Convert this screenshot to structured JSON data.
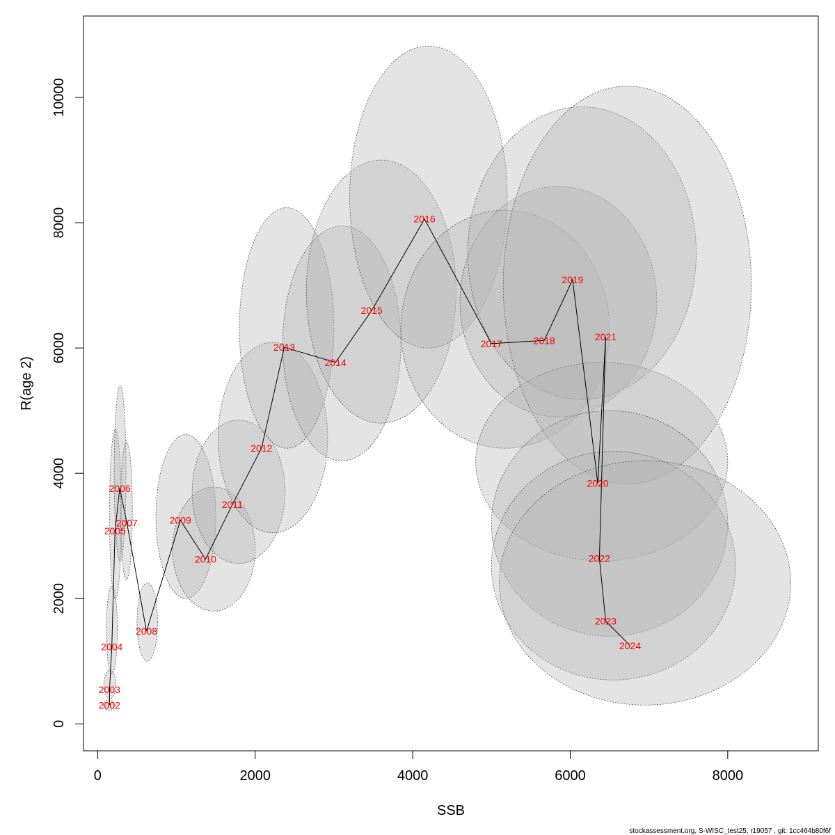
{
  "chart_data": {
    "type": "scatter",
    "title": "",
    "xlabel": "SSB",
    "ylabel": "R(age 2)",
    "xlim": [
      -180,
      9150
    ],
    "ylim": [
      -430,
      11300
    ],
    "xticks": [
      "0",
      "2000",
      "4000",
      "6000",
      "8000"
    ],
    "yticks": [
      "0",
      "2000",
      "4000",
      "6000",
      "8000",
      "10000"
    ],
    "grid": false,
    "legend": "none",
    "point_color": "#ff0000",
    "path_color": "#000000",
    "ellipse_fill": "#b3b3b3",
    "ellipse_stroke": "#555555",
    "points": [
      {
        "year": "2002",
        "x": 150,
        "y": 300,
        "ellipse": {
          "xmin": 70,
          "xmax": 220,
          "ymin": 220,
          "ymax": 380
        }
      },
      {
        "year": "2003",
        "x": 150,
        "y": 550,
        "ellipse": {
          "xmin": 80,
          "xmax": 230,
          "ymin": 400,
          "ymax": 860
        }
      },
      {
        "year": "2004",
        "x": 180,
        "y": 1230,
        "ellipse": {
          "xmin": 110,
          "xmax": 250,
          "ymin": 800,
          "ymax": 2200
        }
      },
      {
        "year": "2005",
        "x": 220,
        "y": 3080,
        "ellipse": {
          "xmin": 150,
          "xmax": 300,
          "ymin": 2000,
          "ymax": 4700
        }
      },
      {
        "year": "2006",
        "x": 280,
        "y": 3760,
        "ellipse": {
          "xmin": 210,
          "xmax": 360,
          "ymin": 2600,
          "ymax": 5400
        }
      },
      {
        "year": "2007",
        "x": 370,
        "y": 3210,
        "ellipse": {
          "xmin": 290,
          "xmax": 440,
          "ymin": 2300,
          "ymax": 4500
        }
      },
      {
        "year": "2008",
        "x": 620,
        "y": 1480,
        "ellipse": {
          "xmin": 500,
          "xmax": 760,
          "ymin": 1000,
          "ymax": 2250
        }
      },
      {
        "year": "2009",
        "x": 1050,
        "y": 3250,
        "ellipse": {
          "xmin": 740,
          "xmax": 1500,
          "ymin": 2000,
          "ymax": 4620
        }
      },
      {
        "year": "2010",
        "x": 1370,
        "y": 2630,
        "ellipse": {
          "xmin": 950,
          "xmax": 2000,
          "ymin": 1800,
          "ymax": 3780
        }
      },
      {
        "year": "2011",
        "x": 1710,
        "y": 3500,
        "ellipse": {
          "xmin": 1200,
          "xmax": 2380,
          "ymin": 2560,
          "ymax": 4850
        }
      },
      {
        "year": "2012",
        "x": 2080,
        "y": 4400,
        "ellipse": {
          "xmin": 1530,
          "xmax": 2920,
          "ymin": 3050,
          "ymax": 6090
        }
      },
      {
        "year": "2013",
        "x": 2370,
        "y": 6010,
        "ellipse": {
          "xmin": 1800,
          "xmax": 3000,
          "ymin": 4400,
          "ymax": 8240
        }
      },
      {
        "year": "2014",
        "x": 3020,
        "y": 5770,
        "ellipse": {
          "xmin": 2350,
          "xmax": 3850,
          "ymin": 4200,
          "ymax": 7950
        }
      },
      {
        "year": "2015",
        "x": 3480,
        "y": 6600,
        "ellipse": {
          "xmin": 2650,
          "xmax": 4550,
          "ymin": 4800,
          "ymax": 9000
        }
      },
      {
        "year": "2016",
        "x": 4150,
        "y": 8060,
        "ellipse": {
          "xmin": 3200,
          "xmax": 5200,
          "ymin": 6000,
          "ymax": 10820
        }
      },
      {
        "year": "2017",
        "x": 5000,
        "y": 6070,
        "ellipse": {
          "xmin": 3850,
          "xmax": 6500,
          "ymin": 4400,
          "ymax": 8200
        }
      },
      {
        "year": "2018",
        "x": 5670,
        "y": 6120,
        "ellipse": {
          "xmin": 4600,
          "xmax": 7100,
          "ymin": 4900,
          "ymax": 8580
        }
      },
      {
        "year": "2019",
        "x": 6030,
        "y": 7090,
        "ellipse": {
          "xmin": 4700,
          "xmax": 7600,
          "ymin": 5180,
          "ymax": 9850
        }
      },
      {
        "year": "2020",
        "x": 6350,
        "y": 3840,
        "ellipse": {
          "xmin": 4800,
          "xmax": 8000,
          "ymin": 2600,
          "ymax": 5770
        }
      },
      {
        "year": "2021",
        "x": 6450,
        "y": 6180,
        "ellipse": {
          "xmin": 5150,
          "xmax": 8300,
          "ymin": 3830,
          "ymax": 10180
        }
      },
      {
        "year": "2022",
        "x": 6370,
        "y": 2640,
        "ellipse": {
          "xmin": 5000,
          "xmax": 8000,
          "ymin": 1400,
          "ymax": 5000
        }
      },
      {
        "year": "2023",
        "x": 6450,
        "y": 1640,
        "ellipse": {
          "xmin": 5000,
          "xmax": 8100,
          "ymin": 700,
          "ymax": 4350
        }
      },
      {
        "year": "2024",
        "x": 6760,
        "y": 1250,
        "ellipse": {
          "xmin": 5100,
          "xmax": 8800,
          "ymin": 300,
          "ymax": 4200
        }
      }
    ]
  },
  "footer": "stockassessment.org, S-WISC_test25, r19057 , git: 1cc464b80f6f"
}
